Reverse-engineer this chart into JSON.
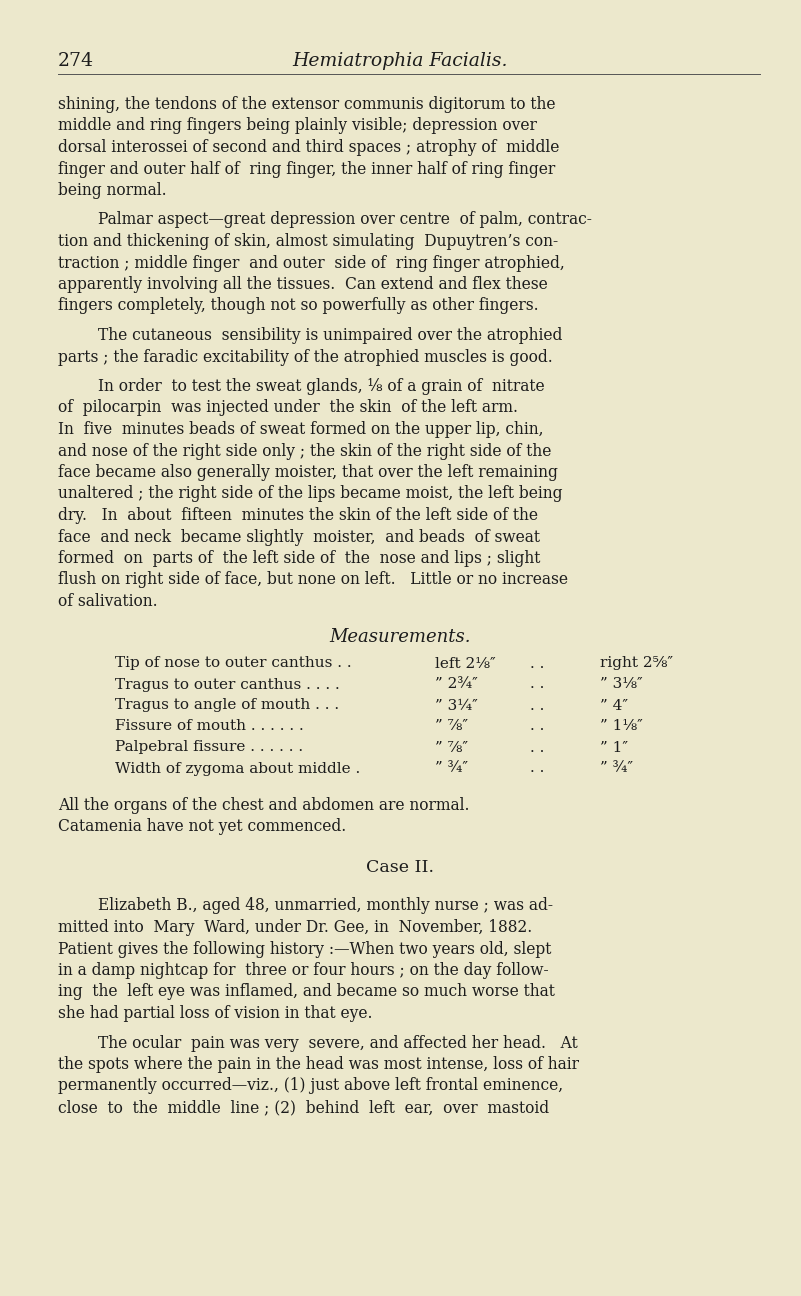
{
  "background_color": "#ece8cc",
  "page_number": "274",
  "header_title": "Hemiatrophia Facialis.",
  "body_lines": [
    "shining, the tendons of the extensor communis digitorum to the",
    "middle and ring fingers being plainly visible; depression over",
    "dorsal interossei of second and third spaces ; atrophy of  middle",
    "finger and outer half of  ring finger, the inner half of ring finger",
    "being normal.",
    "INDENT_Palmar aspect—great depression over centre  of palm, contrac-",
    "tion and thickening of skin, almost simulating  Dupuytren’s con-",
    "traction ; middle finger  and outer  side of  ring finger atrophied,",
    "apparently involving all the tissues.  Can extend and flex these",
    "fingers completely, though not so powerfully as other fingers.",
    "INDENT_The cutaneous  sensibility is unimpaired over the atrophied",
    "parts ; the faradic excitability of the atrophied muscles is good.",
    "INDENT_In order  to test the sweat glands, ⅛ of a grain of  nitrate",
    "of  pilocarpin  was injected under  the skin  of the left arm.",
    "In  five  minutes beads of sweat formed on the upper lip, chin,",
    "and nose of the right side only ; the skin of the right side of the",
    "face became also generally moister, that over the left remaining",
    "unaltered ; the right side of the lips became moist, the left being",
    "dry.   In  about  fifteen  minutes the skin of the left side of the",
    "face  and neck  became slightly  moister,  and beads  of sweat",
    "formed  on  parts of  the left side of  the  nose and lips ; slight",
    "flush on right side of face, but none on left.   Little or no increase",
    "of salivation."
  ],
  "measurements_title": "Measurements.",
  "meas_rows": [
    [
      "Tip of nose to outer canthus . .",
      "left 2⅛″",
      ". .",
      "right 2⅝″"
    ],
    [
      "Tragus to outer canthus . . . .",
      "” 2¾″",
      ". .",
      "” 3⅛″"
    ],
    [
      "Tragus to angle of mouth . . .",
      "” 3¼″",
      ". .",
      "” 4″"
    ],
    [
      "Fissure of mouth . . . . . .",
      "” ⅞″",
      ". .",
      "” 1⅛″"
    ],
    [
      "Palpebral fissure . . . . . .",
      "” ⅞″",
      ". .",
      "” 1″"
    ],
    [
      "Width of zygoma about middle .",
      "” ¾″",
      ". .",
      "” ¾″"
    ]
  ],
  "after_meas_lines": [
    "All the organs of the chest and abdomen are normal.",
    "Catamenia have not yet commenced."
  ],
  "case_title": "Case II.",
  "case2_lines": [
    "INDENT_Elizabeth B., aged 48, unmarried, monthly nurse ; was ad-",
    "mitted into  Mary  Ward, under Dr. Gee, in  November, 1882.",
    "Patient gives the following history :—When two years old, slept",
    "in a damp nightcap for  three or four hours ; on the day follow-",
    "ing  the  left eye was inflamed, and became so much worse that",
    "she had partial loss of vision in that eye.",
    "INDENT_The ocular  pain was very  severe, and affected her head.   At",
    "the spots where the pain in the head was most intense, loss of hair",
    "permanently occurred—viz., (1) just above left frontal eminence,",
    "close  to  the  middle  line ; (2)  behind  left  ear,  over  mastoid"
  ]
}
